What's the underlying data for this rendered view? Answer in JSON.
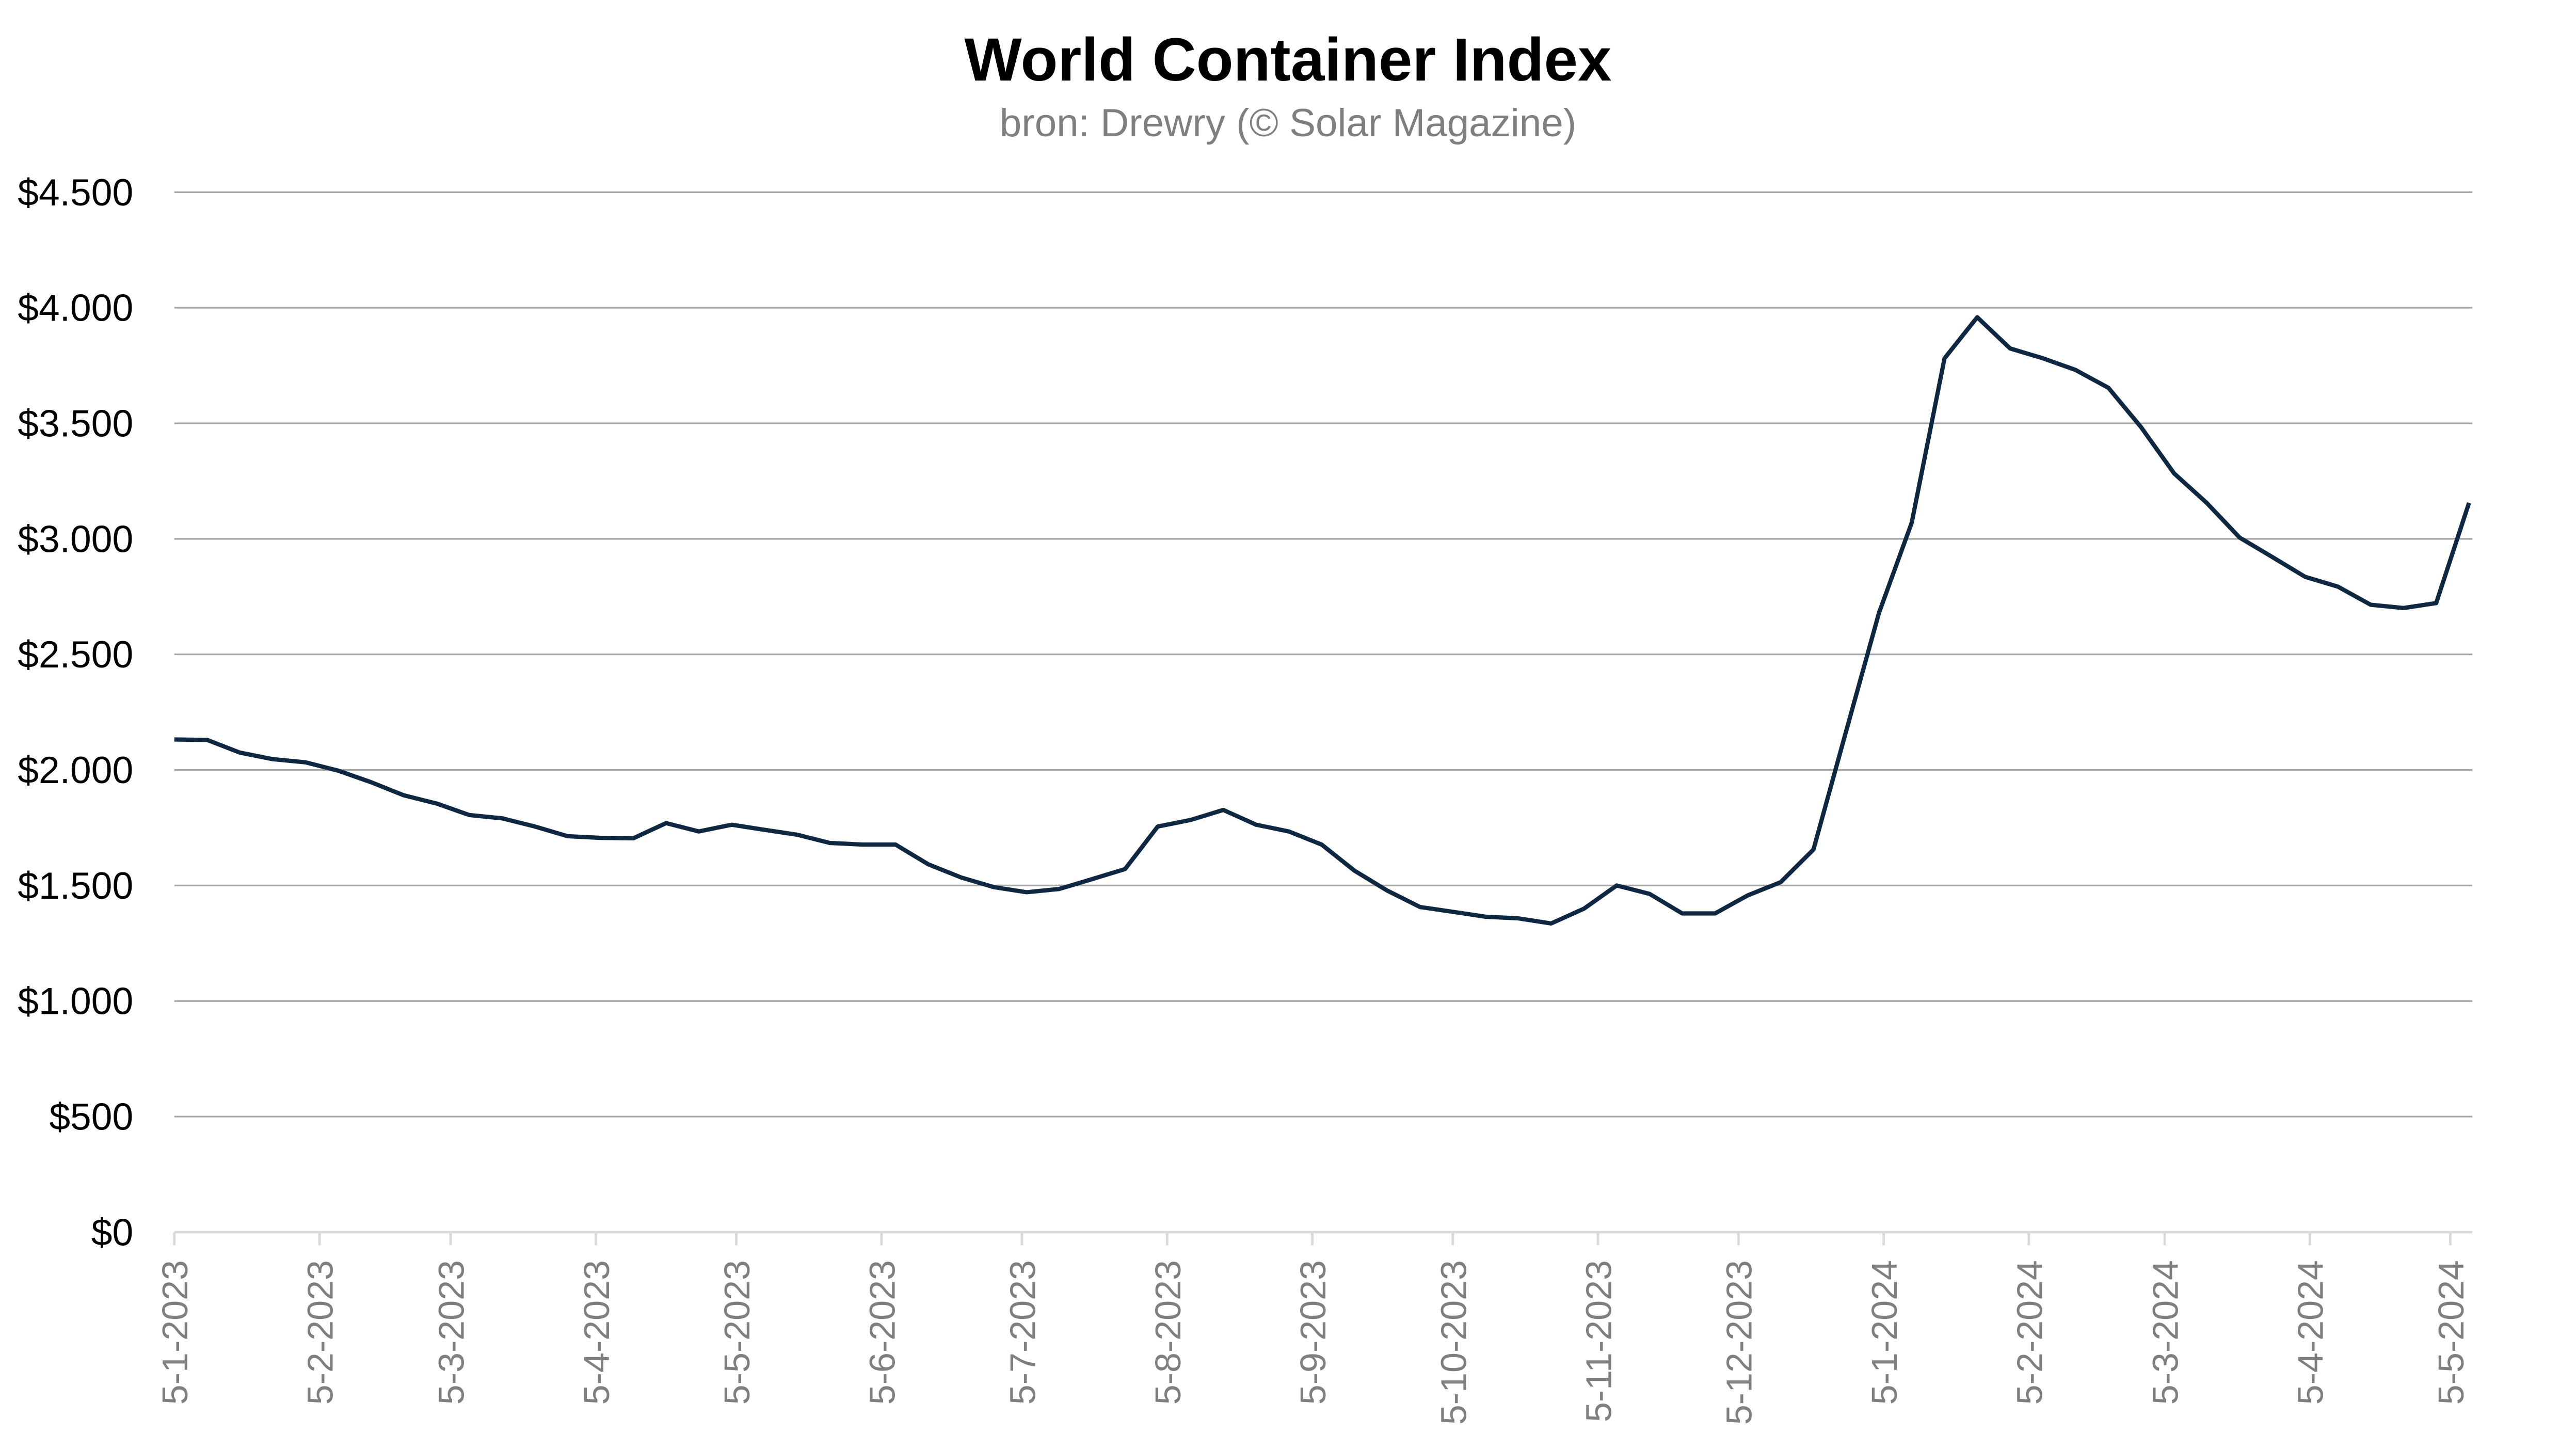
{
  "chart_data": {
    "type": "line",
    "title": "World Container Index",
    "subtitle": "bron: Drewry (© Solar Magazine)",
    "xlabel": "",
    "ylabel": "",
    "ylim": [
      0,
      4500
    ],
    "y_ticks": [
      0,
      500,
      1000,
      1500,
      2000,
      2500,
      3000,
      3500,
      4000,
      4500
    ],
    "y_tick_labels": [
      "$0",
      "$500",
      "$1.000",
      "$1.500",
      "$2.000",
      "$2.500",
      "$3.000",
      "$3.500",
      "$4.000",
      "$4.500"
    ],
    "x_start": "2023-01-05",
    "x_interval_days": 7,
    "x_tick_dates": [
      "2023-01-05",
      "2023-02-05",
      "2023-03-05",
      "2023-04-05",
      "2023-05-05",
      "2023-06-05",
      "2023-07-05",
      "2023-08-05",
      "2023-09-05",
      "2023-10-05",
      "2023-11-05",
      "2023-12-05",
      "2024-01-05",
      "2024-02-05",
      "2024-03-05",
      "2024-04-05",
      "2024-05-05"
    ],
    "x_tick_labels": [
      "5-1-2023",
      "5-2-2023",
      "5-3-2023",
      "5-4-2023",
      "5-5-2023",
      "5-6-2023",
      "5-7-2023",
      "5-8-2023",
      "5-9-2023",
      "5-10-2023",
      "5-11-2023",
      "5-12-2023",
      "5-1-2024",
      "5-2-2024",
      "5-3-2024",
      "5-4-2024",
      "5-5-2024"
    ],
    "grid": true,
    "legend": "none",
    "series": [
      {
        "name": "World Container Index",
        "color": "#0e2841",
        "values": [
          2132,
          2130,
          2075,
          2047,
          2033,
          1997,
          1947,
          1890,
          1855,
          1805,
          1791,
          1755,
          1713,
          1706,
          1704,
          1770,
          1734,
          1763,
          1741,
          1720,
          1684,
          1677,
          1677,
          1592,
          1535,
          1493,
          1471,
          1485,
          1528,
          1571,
          1755,
          1784,
          1827,
          1763,
          1734,
          1677,
          1564,
          1478,
          1407,
          1386,
          1365,
          1358,
          1336,
          1400,
          1500,
          1464,
          1379,
          1379,
          1457,
          1514,
          1656,
          2168,
          2680,
          3070,
          3781,
          3959,
          3824,
          3781,
          3731,
          3653,
          3483,
          3284,
          3156,
          3006,
          2921,
          2836,
          2793,
          2715,
          2701,
          2722,
          3156
        ]
      }
    ]
  }
}
